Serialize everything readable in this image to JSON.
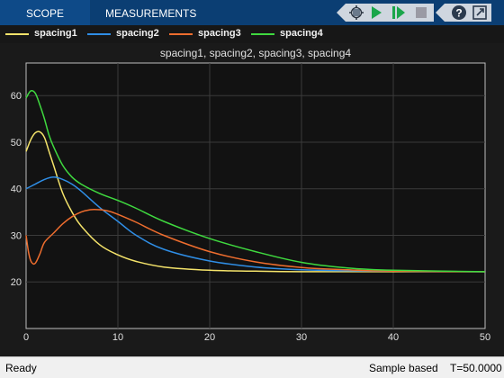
{
  "tabs": [
    {
      "label": "SCOPE"
    },
    {
      "label": "MEASUREMENTS"
    }
  ],
  "toolbar": {
    "icons": [
      "highlight-simulink-block-icon",
      "run-icon",
      "step-forward-icon",
      "stop-icon",
      "help-icon",
      "undock-icon"
    ]
  },
  "legend": [
    {
      "name": "spacing1",
      "color": "#f4e36a"
    },
    {
      "name": "spacing2",
      "color": "#2f8ee6"
    },
    {
      "name": "spacing3",
      "color": "#ee6d2e"
    },
    {
      "name": "spacing4",
      "color": "#3fd93f"
    }
  ],
  "status": {
    "left": "Ready",
    "mode": "Sample based",
    "time": "T=50.0000"
  },
  "chart_data": {
    "type": "line",
    "title": "spacing1, spacing2, spacing3, spacing4",
    "xlabel": "",
    "ylabel": "",
    "xlim": [
      0,
      50
    ],
    "ylim": [
      10,
      67
    ],
    "xticks": [
      0,
      10,
      20,
      30,
      40,
      50
    ],
    "yticks": [
      20,
      30,
      40,
      50,
      60
    ],
    "grid": true,
    "legend_position": "top",
    "colors": {
      "background": "#121212",
      "grid": "#3a3a3a",
      "axis": "#bfbfbf",
      "text": "#e0e0e0"
    },
    "series": [
      {
        "name": "spacing1",
        "color": "#f4e36a",
        "x": [
          0,
          0.5,
          1,
          1.5,
          2,
          2.5,
          3,
          4,
          5,
          6,
          8,
          10,
          12,
          15,
          20,
          25,
          30,
          40,
          50
        ],
        "y": [
          48,
          50.5,
          52,
          52.2,
          51,
          48,
          45,
          39,
          35,
          32,
          28,
          25.8,
          24.4,
          23.2,
          22.5,
          22.3,
          22.2,
          22.2,
          22.2
        ]
      },
      {
        "name": "spacing2",
        "color": "#2f8ee6",
        "x": [
          0,
          1,
          2,
          3,
          4,
          5,
          6,
          8,
          10,
          12,
          15,
          20,
          25,
          30,
          35,
          40,
          50
        ],
        "y": [
          40,
          41,
          42,
          42.5,
          42,
          41,
          39.5,
          36,
          33,
          30,
          27,
          24.5,
          23.2,
          22.6,
          22.4,
          22.3,
          22.2
        ]
      },
      {
        "name": "spacing3",
        "color": "#ee6d2e",
        "x": [
          0,
          0.3,
          0.6,
          1,
          1.5,
          2,
          3,
          4,
          5,
          6,
          7,
          8,
          9,
          10,
          12,
          15,
          20,
          25,
          30,
          35,
          40,
          50
        ],
        "y": [
          30,
          26,
          24.2,
          24,
          26,
          28.5,
          30.5,
          32.5,
          34,
          35,
          35.5,
          35.5,
          35.2,
          34.5,
          32.8,
          30,
          26.5,
          24.3,
          23.1,
          22.6,
          22.3,
          22.2
        ]
      },
      {
        "name": "spacing4",
        "color": "#3fd93f",
        "x": [
          0,
          0.5,
          1,
          1.5,
          2,
          2.5,
          3,
          4,
          5,
          6,
          8,
          10,
          12,
          15,
          20,
          25,
          30,
          35,
          40,
          50
        ],
        "y": [
          59.5,
          61,
          60.5,
          58,
          55,
          51.5,
          49,
          45,
          42.5,
          41,
          39,
          37.5,
          35.8,
          33,
          29.3,
          26.5,
          24.2,
          23,
          22.5,
          22.2
        ]
      }
    ]
  }
}
